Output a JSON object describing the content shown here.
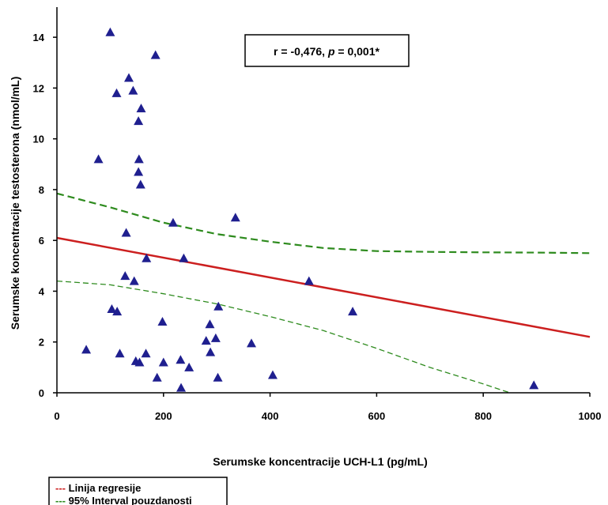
{
  "chart_data": {
    "type": "scatter",
    "xlabel": "Serumske koncentracije UCH-L1 (pg/mL)",
    "ylabel": "Serumske koncentracije testosterona (nmol/mL)",
    "xlim": [
      0,
      1000
    ],
    "ylim": [
      0,
      15
    ],
    "x_ticks": [
      "0",
      "200",
      "400",
      "600",
      "800",
      "1000"
    ],
    "y_ticks": [
      "0",
      "2",
      "4",
      "6",
      "8",
      "10",
      "12",
      "14"
    ],
    "grid": false,
    "annotation": {
      "r_part": "r = -0,476, ",
      "p_symbol": "p",
      "p_part": " = 0,001*"
    },
    "points": [
      {
        "x": 100,
        "y": 14.2
      },
      {
        "x": 185,
        "y": 13.3
      },
      {
        "x": 135,
        "y": 12.4
      },
      {
        "x": 143,
        "y": 11.9
      },
      {
        "x": 112,
        "y": 11.8
      },
      {
        "x": 158,
        "y": 11.2
      },
      {
        "x": 153,
        "y": 10.7
      },
      {
        "x": 78,
        "y": 9.2
      },
      {
        "x": 154,
        "y": 9.2
      },
      {
        "x": 153,
        "y": 8.7
      },
      {
        "x": 157,
        "y": 8.2
      },
      {
        "x": 335,
        "y": 6.9
      },
      {
        "x": 218,
        "y": 6.7
      },
      {
        "x": 130,
        "y": 6.3
      },
      {
        "x": 168,
        "y": 5.3
      },
      {
        "x": 238,
        "y": 5.3
      },
      {
        "x": 128,
        "y": 4.6
      },
      {
        "x": 145,
        "y": 4.4
      },
      {
        "x": 473,
        "y": 4.4
      },
      {
        "x": 103,
        "y": 3.3
      },
      {
        "x": 113,
        "y": 3.2
      },
      {
        "x": 303,
        "y": 3.4
      },
      {
        "x": 555,
        "y": 3.2
      },
      {
        "x": 198,
        "y": 2.8
      },
      {
        "x": 287,
        "y": 2.7
      },
      {
        "x": 298,
        "y": 2.15
      },
      {
        "x": 280,
        "y": 2.05
      },
      {
        "x": 365,
        "y": 1.95
      },
      {
        "x": 55,
        "y": 1.7
      },
      {
        "x": 118,
        "y": 1.55
      },
      {
        "x": 167,
        "y": 1.55
      },
      {
        "x": 288,
        "y": 1.6
      },
      {
        "x": 148,
        "y": 1.25
      },
      {
        "x": 155,
        "y": 1.2
      },
      {
        "x": 200,
        "y": 1.2
      },
      {
        "x": 232,
        "y": 1.3
      },
      {
        "x": 248,
        "y": 1.0
      },
      {
        "x": 188,
        "y": 0.6
      },
      {
        "x": 302,
        "y": 0.6
      },
      {
        "x": 405,
        "y": 0.7
      },
      {
        "x": 233,
        "y": 0.2
      },
      {
        "x": 895,
        "y": 0.3
      }
    ],
    "regression_line": {
      "x": [
        0,
        1000
      ],
      "y": [
        6.1,
        2.2
      ]
    },
    "ci_upper": {
      "x": [
        0,
        100,
        200,
        300,
        400,
        500,
        600,
        700,
        800,
        900,
        1000
      ],
      "y": [
        7.85,
        7.3,
        6.7,
        6.25,
        5.95,
        5.7,
        5.58,
        5.55,
        5.53,
        5.52,
        5.5
      ]
    },
    "ci_lower": {
      "x": [
        0,
        100,
        200,
        300,
        400,
        500,
        600,
        700,
        800,
        850
      ],
      "y": [
        4.4,
        4.25,
        3.9,
        3.5,
        3.0,
        2.45,
        1.75,
        1.0,
        0.35,
        0.0
      ]
    },
    "colors": {
      "points": "#1f1f8f",
      "regression": "#cc1f1f",
      "ci": "#2e8b1e",
      "axis": "#000000"
    },
    "legend": {
      "placement": "bottom-left",
      "items": [
        {
          "marker": "---",
          "label": "Linija regresije",
          "color": "#cc1f1f"
        },
        {
          "marker": "---",
          "label": "95% Interval pouzdanosti",
          "color": "#2e8b1e"
        }
      ]
    }
  }
}
